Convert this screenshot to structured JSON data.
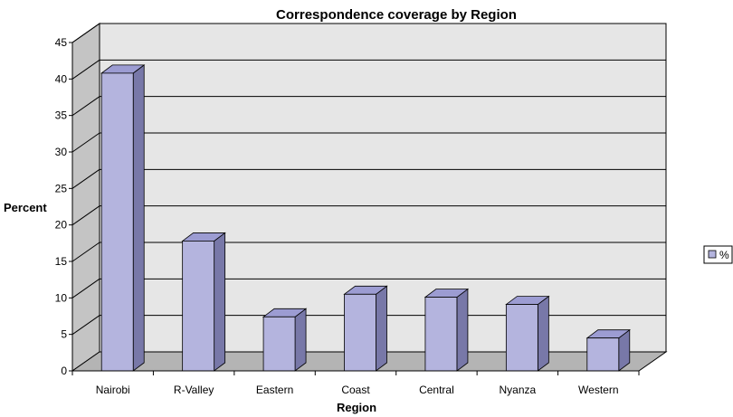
{
  "chart_data": {
    "type": "bar",
    "title": "Correspondence coverage by Region",
    "xlabel": "Region",
    "ylabel": "Percent",
    "categories": [
      "Nairobi",
      "R-Valley",
      "Eastern",
      "Coast",
      "Central",
      "Nyanza",
      "Western"
    ],
    "series": [
      {
        "name": "%",
        "values": [
          40.8,
          17.8,
          7.4,
          10.5,
          10.1,
          9.1,
          4.5
        ]
      }
    ],
    "ylim": [
      0,
      45
    ],
    "yticks": [
      "0",
      "5",
      "10",
      "15",
      "20",
      "25",
      "30",
      "35",
      "40",
      "45"
    ],
    "grid": true,
    "legend_position": "right",
    "colors": {
      "bar_front": "#b4b4de",
      "bar_side": "#7878a8",
      "bar_top": "#9c9cd2",
      "wall": "#e6e6e6",
      "side_wall": "#c4c4c4",
      "floor": "#b4b4b4"
    }
  }
}
